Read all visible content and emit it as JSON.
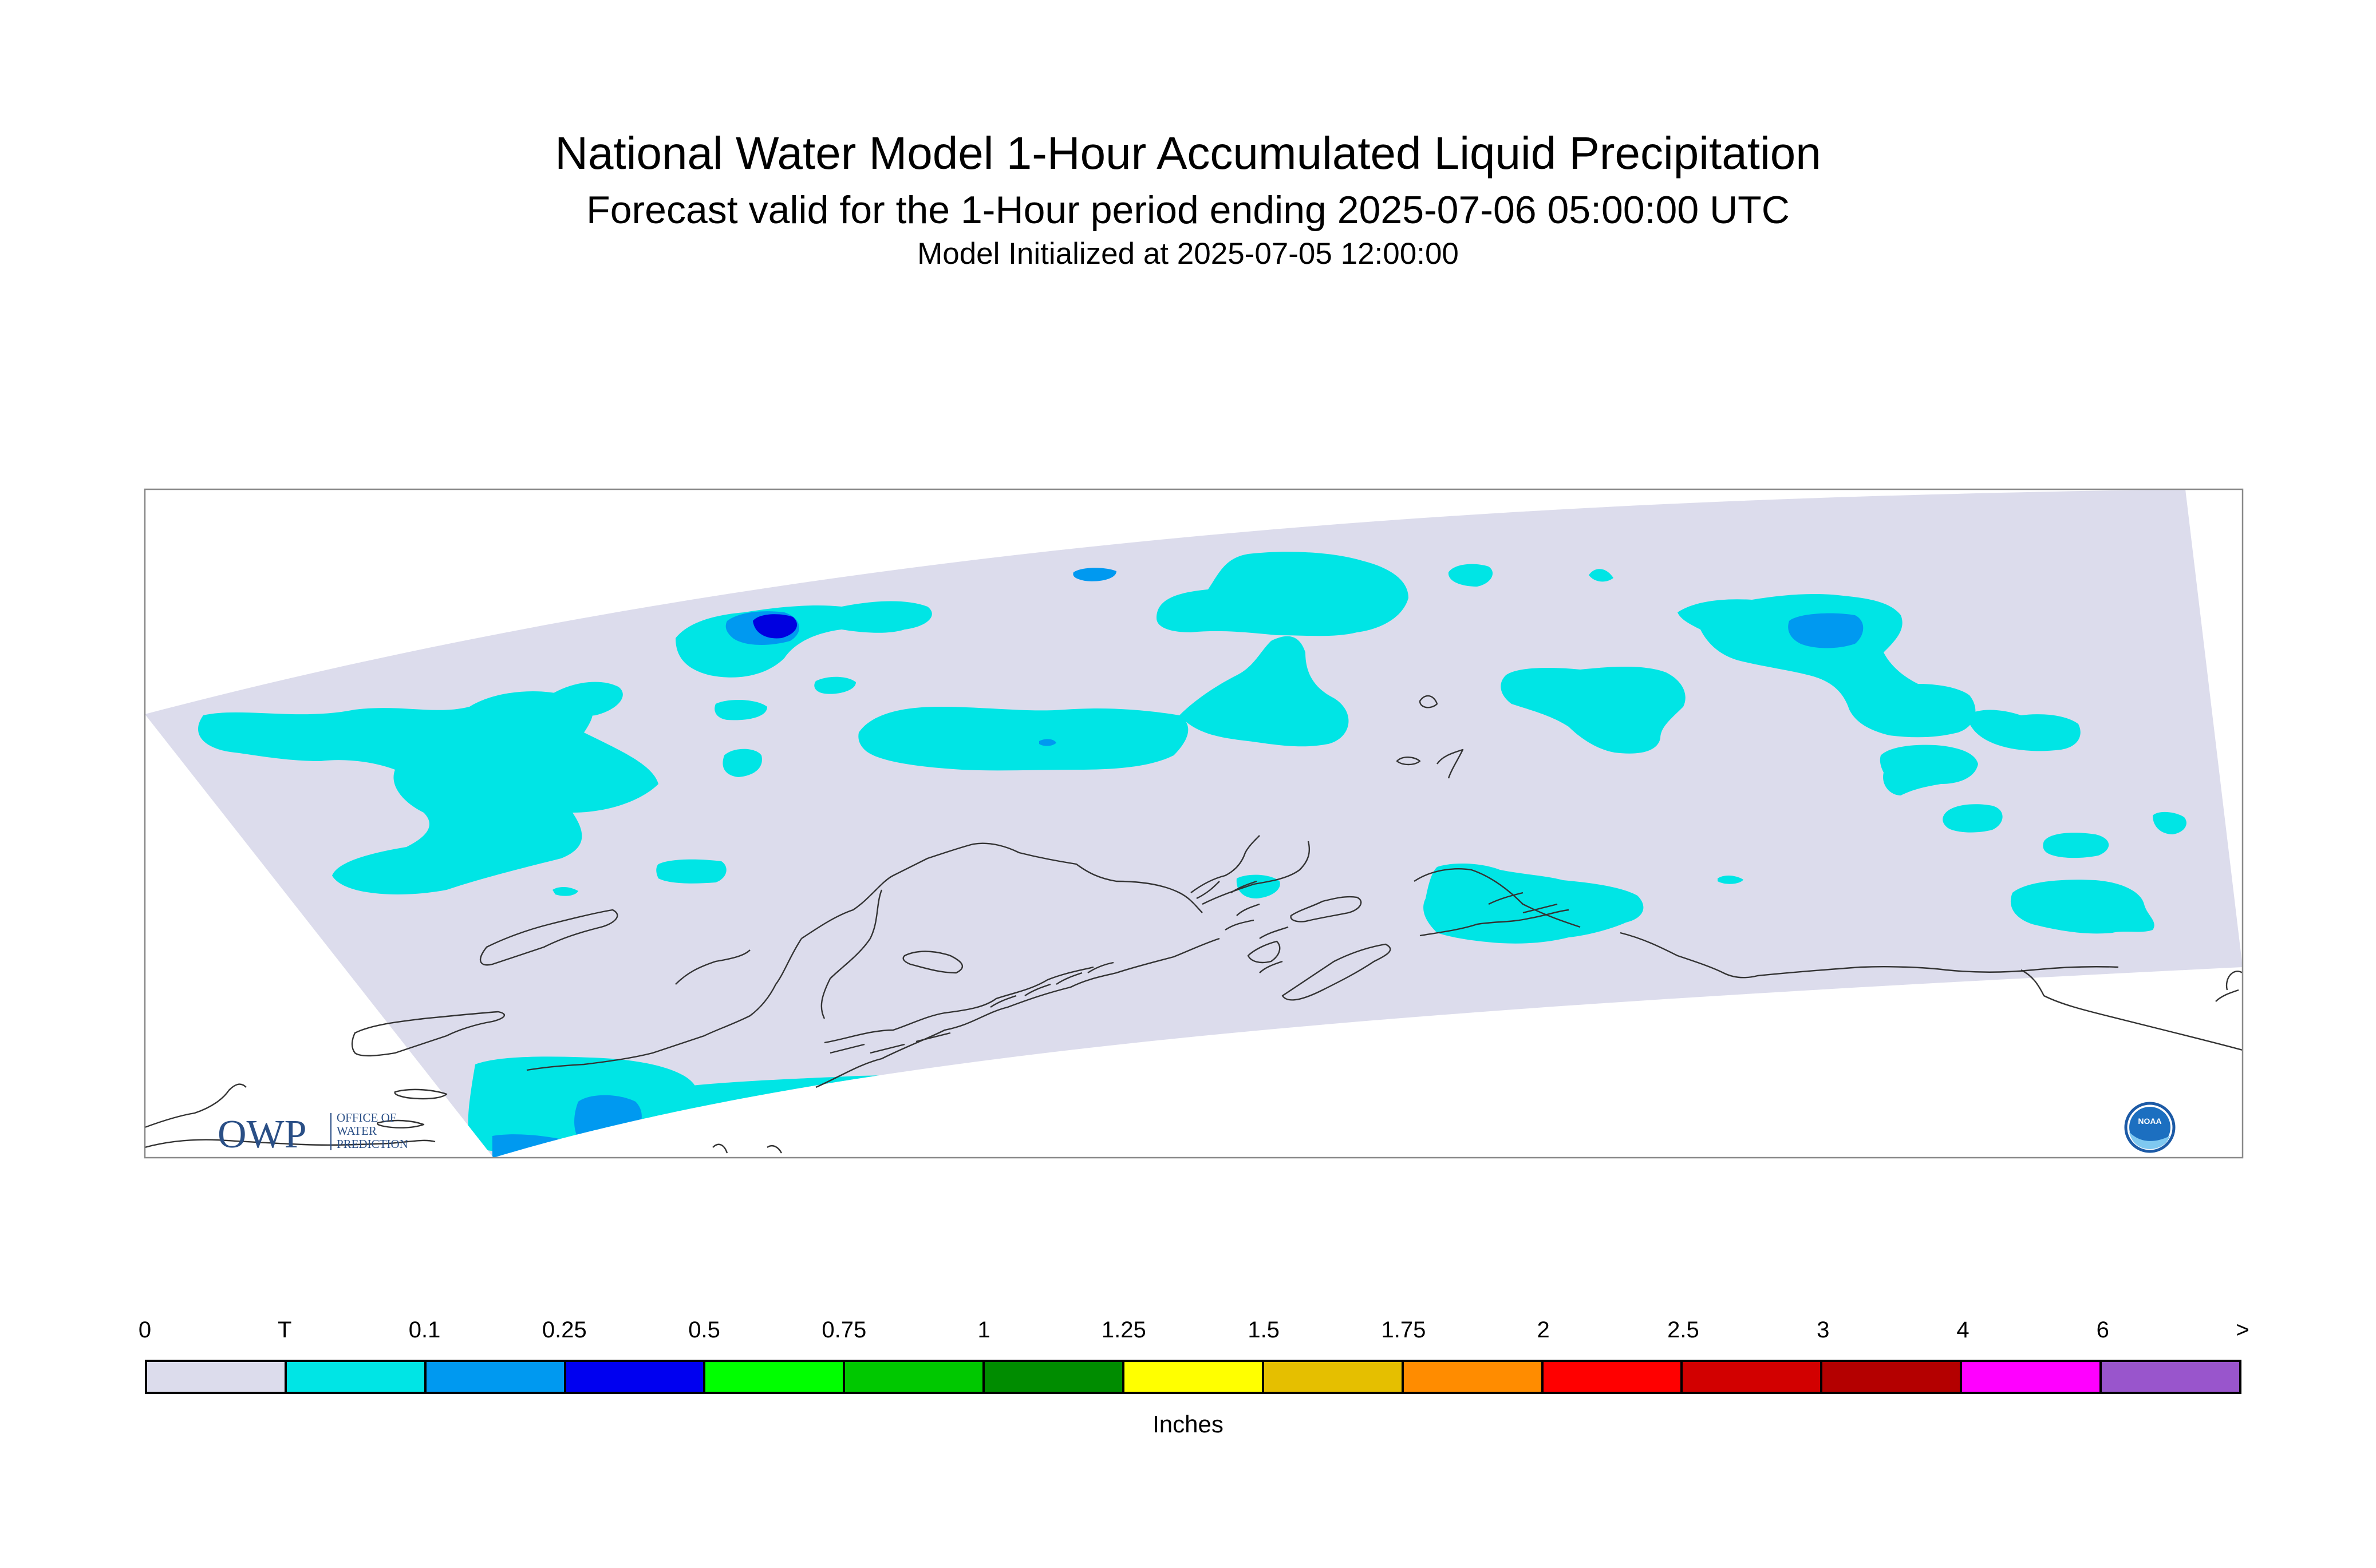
{
  "titles": {
    "main": "National Water Model 1-Hour Accumulated Liquid Precipitation",
    "forecast": "Forecast valid for the 1-Hour period ending 2025-07-06 05:00:00 UTC",
    "init": "Model Initialized at 2025-07-05 12:00:00"
  },
  "logos": {
    "owp_mark": "OWP",
    "owp_text": [
      "OFFICE OF",
      "WATER",
      "PREDICTION"
    ],
    "noaa_text": "NOAA"
  },
  "colors": {
    "domain": "#dcdcec",
    "coastline": "#333333",
    "frame": "#888888"
  },
  "legend": {
    "units": "Inches",
    "bins": [
      "#dcdcec",
      "#00e5e5",
      "#0099f0",
      "#0000f0",
      "#00ff00",
      "#00c800",
      "#008c00",
      "#ffff00",
      "#e5bf00",
      "#ff8c00",
      "#ff0000",
      "#d20000",
      "#b40000",
      "#ff00ff",
      "#9955cc"
    ],
    "labels": [
      "0",
      "T",
      "0.1",
      "0.25",
      "0.5",
      "0.75",
      "1",
      "1.25",
      "1.5",
      "1.75",
      "2",
      "2.5",
      "3",
      "4",
      "6",
      ">"
    ]
  }
}
